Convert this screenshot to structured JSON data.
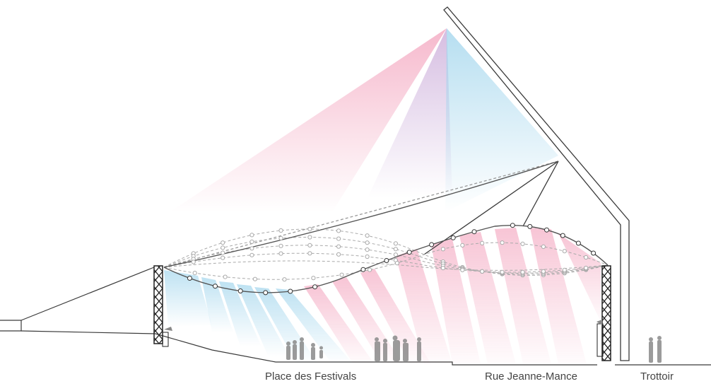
{
  "labels": {
    "place": "Place des Festivals",
    "rue": "Rue Jeanne-Mance",
    "trottoir": "Trottoir"
  },
  "colors": {
    "beam_pink": "#f3a3bd",
    "beam_blue": "#9fd4ec",
    "beam_purple": "#c9a9d8",
    "structure": "#3a3a3a",
    "cable": "#9a9a9a",
    "node_fill": "#ffffff"
  }
}
